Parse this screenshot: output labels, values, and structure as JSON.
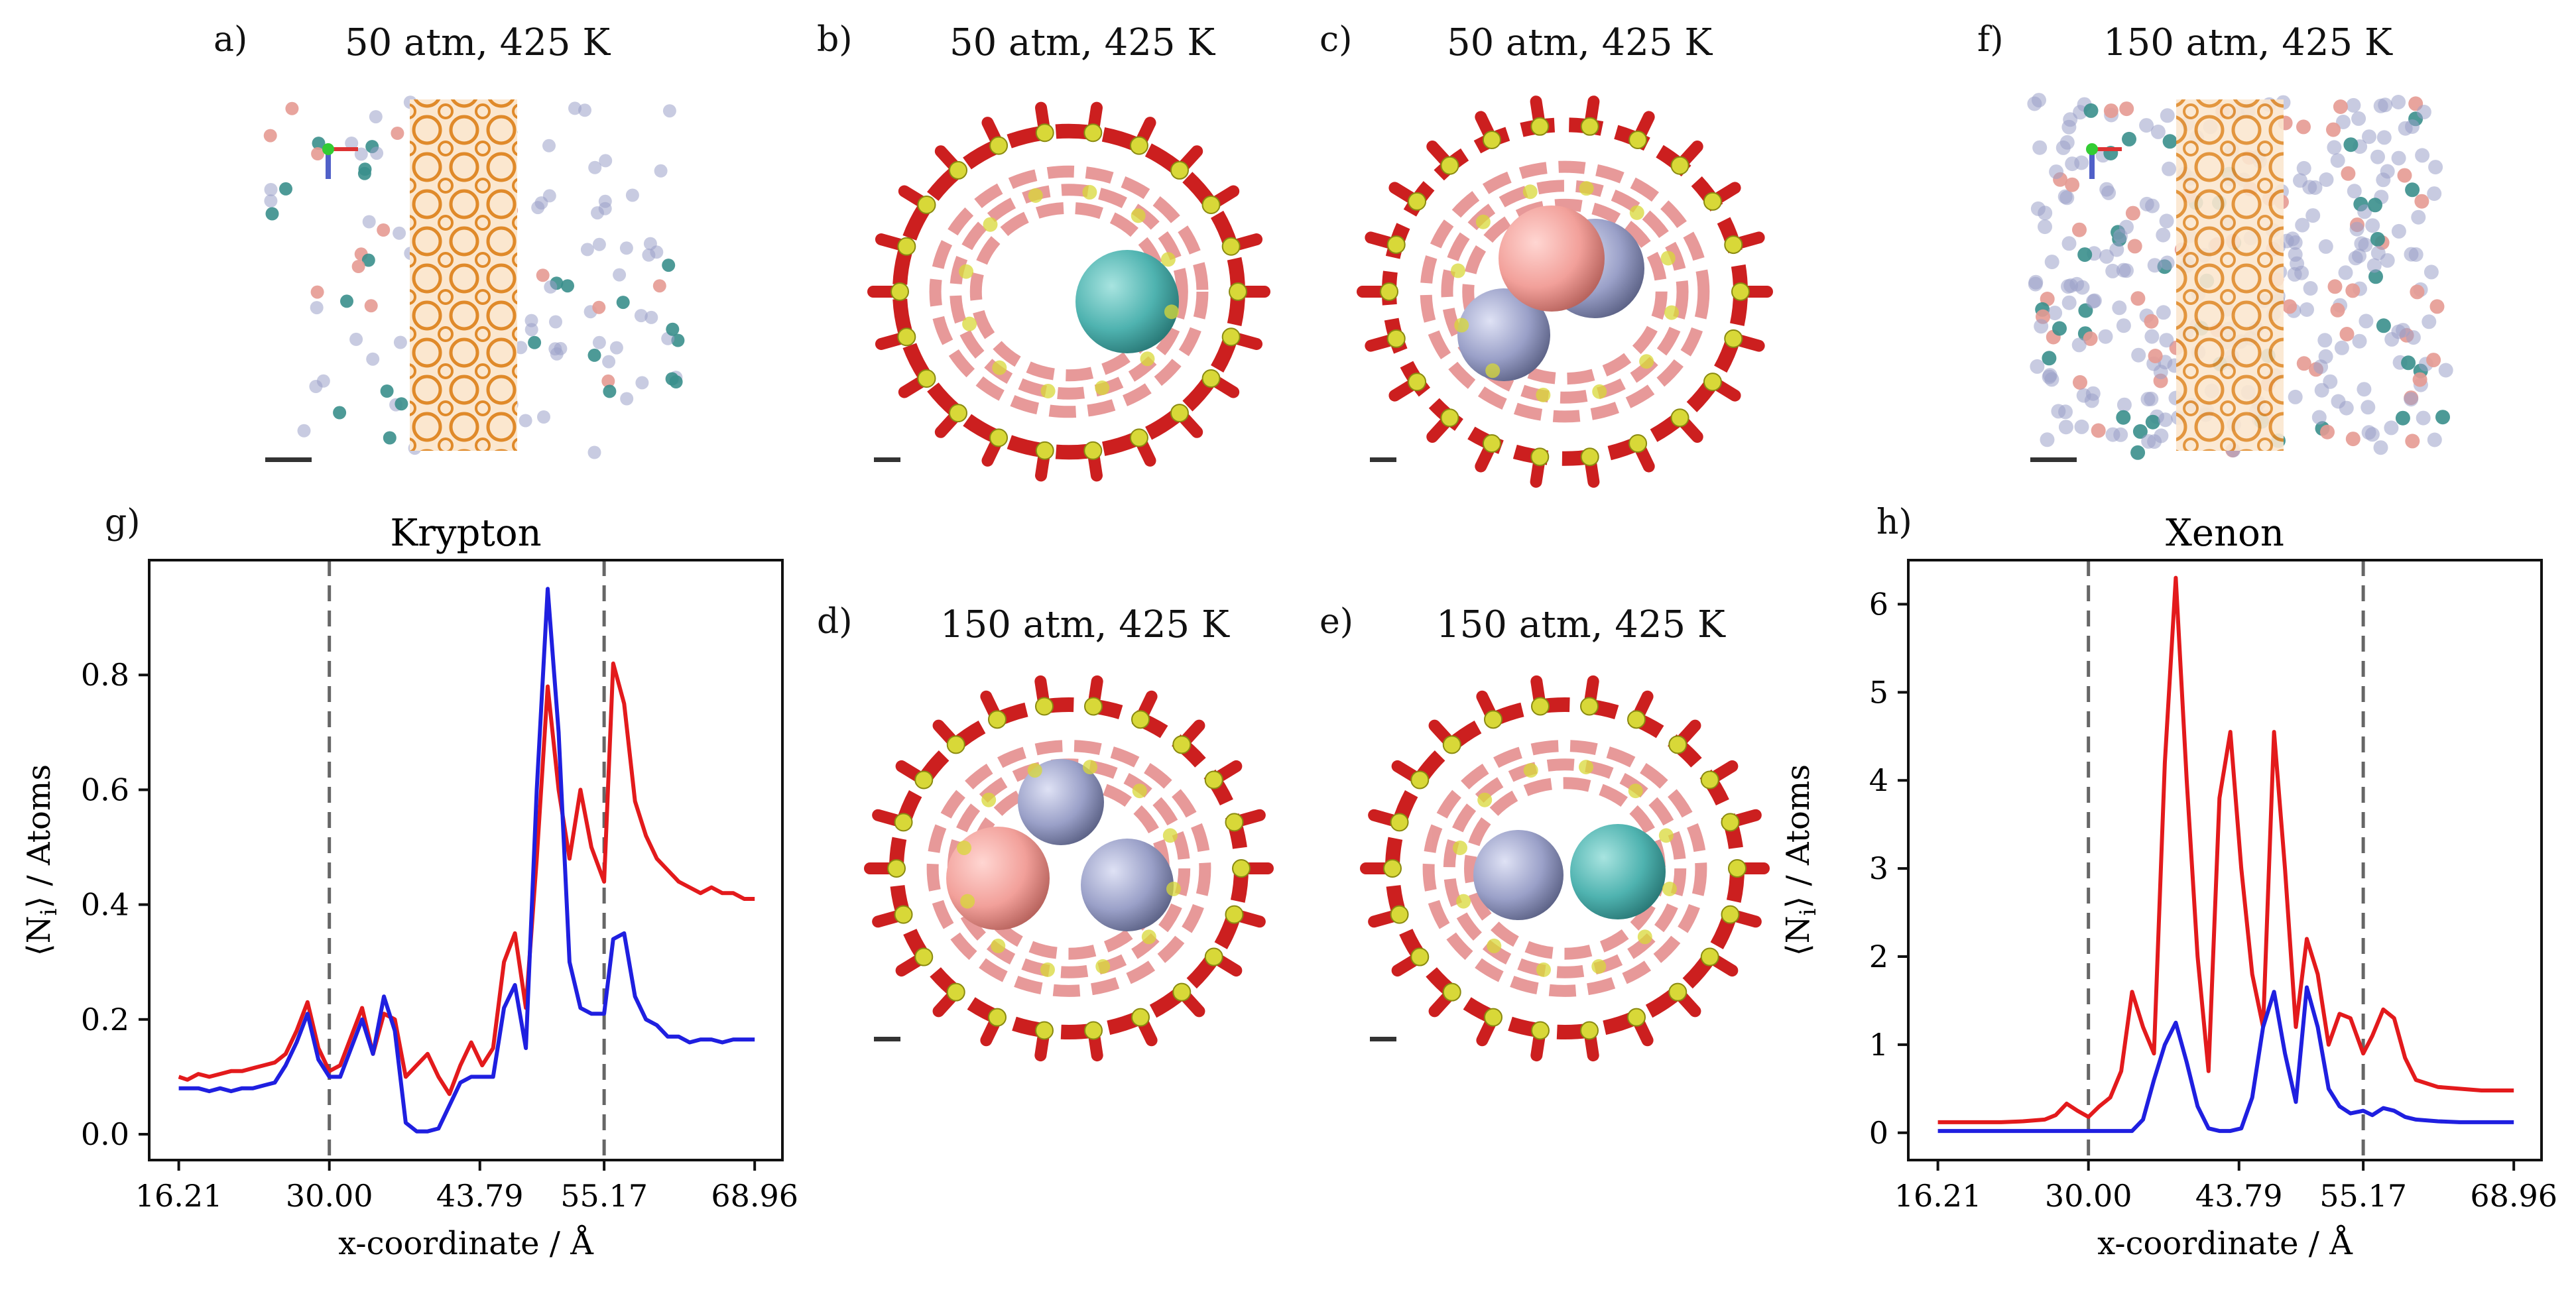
{
  "panels": {
    "a": {
      "label": "a)",
      "title": "50 atm, 425 K"
    },
    "b": {
      "label": "b)",
      "title": "50 atm, 425 K"
    },
    "c": {
      "label": "c)",
      "title": "50 atm, 425 K"
    },
    "d": {
      "label": "d)",
      "title": "150 atm, 425 K"
    },
    "e": {
      "label": "e)",
      "title": "150 atm, 425 K"
    },
    "f": {
      "label": "f)",
      "title": "150 atm, 425 K"
    },
    "g": {
      "label": "g)"
    },
    "h": {
      "label": "h)"
    }
  },
  "colors": {
    "red_series": "#e31a1c",
    "blue_series": "#1f1fe0",
    "framework_o": "#cc1f1f",
    "framework_si": "#d8d838",
    "krypton_atom": "#4fb3b0",
    "xenon_atom": "#f2a09a",
    "gas_atom": "#9aa0c8",
    "cage_orange": "#e08a2a"
  },
  "chart_data": [
    {
      "type": "line",
      "title": "Krypton",
      "xlabel": "x-coordinate / Å",
      "ylabel": "⟨N",
      "ylabel_sub": "i",
      "ylabel_tail": "⟩ / Atoms",
      "xlim": [
        13.5,
        71.5
      ],
      "ylim": [
        -0.045,
        1.0
      ],
      "xticks": [
        16.21,
        30.0,
        43.79,
        55.17,
        68.96
      ],
      "xtick_labels": [
        "16.21",
        "30.00",
        "43.79",
        "55.17",
        "68.96"
      ],
      "yticks": [
        0.0,
        0.2,
        0.4,
        0.6,
        0.8
      ],
      "ytick_labels": [
        "0.0",
        "0.2",
        "0.4",
        "0.6",
        "0.8"
      ],
      "vlines": [
        30.0,
        55.17
      ],
      "series": [
        {
          "name": "red",
          "color": "#e31a1c",
          "x": [
            16.21,
            17.0,
            18.0,
            19.0,
            20.0,
            21.0,
            22.0,
            23.0,
            24.0,
            25.0,
            26.0,
            27.0,
            28.0,
            29.0,
            30.0,
            31.0,
            32.0,
            33.0,
            34.0,
            35.0,
            36.0,
            37.0,
            38.0,
            39.0,
            40.0,
            41.0,
            42.0,
            43.0,
            44.0,
            45.0,
            46.0,
            47.0,
            48.0,
            49.0,
            50.0,
            51.0,
            52.0,
            53.0,
            54.0,
            55.17,
            56.0,
            57.0,
            58.0,
            59.0,
            60.0,
            61.0,
            62.0,
            63.0,
            64.0,
            65.0,
            66.0,
            67.0,
            68.0,
            68.96
          ],
          "y": [
            0.1,
            0.095,
            0.105,
            0.1,
            0.105,
            0.11,
            0.11,
            0.115,
            0.12,
            0.125,
            0.14,
            0.18,
            0.23,
            0.15,
            0.11,
            0.12,
            0.17,
            0.22,
            0.14,
            0.21,
            0.2,
            0.1,
            0.12,
            0.14,
            0.1,
            0.07,
            0.12,
            0.16,
            0.12,
            0.15,
            0.3,
            0.35,
            0.22,
            0.48,
            0.78,
            0.6,
            0.48,
            0.6,
            0.5,
            0.44,
            0.82,
            0.75,
            0.58,
            0.52,
            0.48,
            0.46,
            0.44,
            0.43,
            0.42,
            0.43,
            0.42,
            0.42,
            0.41,
            0.41
          ]
        },
        {
          "name": "blue",
          "color": "#1f1fe0",
          "x": [
            16.21,
            17.0,
            18.0,
            19.0,
            20.0,
            21.0,
            22.0,
            23.0,
            24.0,
            25.0,
            26.0,
            27.0,
            28.0,
            29.0,
            30.0,
            31.0,
            32.0,
            33.0,
            34.0,
            35.0,
            36.0,
            37.0,
            38.0,
            39.0,
            40.0,
            41.0,
            42.0,
            43.0,
            44.0,
            45.0,
            46.0,
            47.0,
            48.0,
            49.0,
            50.0,
            51.0,
            52.0,
            53.0,
            54.0,
            55.17,
            56.0,
            57.0,
            58.0,
            59.0,
            60.0,
            61.0,
            62.0,
            63.0,
            64.0,
            65.0,
            66.0,
            67.0,
            68.0,
            68.96
          ],
          "y": [
            0.08,
            0.08,
            0.08,
            0.075,
            0.08,
            0.075,
            0.08,
            0.08,
            0.085,
            0.09,
            0.12,
            0.16,
            0.21,
            0.13,
            0.1,
            0.1,
            0.15,
            0.2,
            0.14,
            0.24,
            0.18,
            0.02,
            0.005,
            0.005,
            0.01,
            0.05,
            0.09,
            0.1,
            0.1,
            0.1,
            0.22,
            0.26,
            0.15,
            0.6,
            0.95,
            0.7,
            0.3,
            0.22,
            0.21,
            0.21,
            0.34,
            0.35,
            0.24,
            0.2,
            0.19,
            0.17,
            0.17,
            0.16,
            0.165,
            0.165,
            0.16,
            0.165,
            0.165,
            0.165
          ]
        }
      ]
    },
    {
      "type": "line",
      "title": "Xenon",
      "xlabel": "x-coordinate / Å",
      "ylabel": "⟨N",
      "ylabel_sub": "i",
      "ylabel_tail": "⟩ / Atoms",
      "xlim": [
        13.5,
        71.5
      ],
      "ylim": [
        -0.31,
        6.5
      ],
      "xticks": [
        16.21,
        30.0,
        43.79,
        55.17,
        68.96
      ],
      "xtick_labels": [
        "16.21",
        "30.00",
        "43.79",
        "55.17",
        "68.96"
      ],
      "yticks": [
        0,
        1,
        2,
        3,
        4,
        5,
        6
      ],
      "ytick_labels": [
        "0",
        "1",
        "2",
        "3",
        "4",
        "5",
        "6"
      ],
      "vlines": [
        30.0,
        55.17
      ],
      "series": [
        {
          "name": "red",
          "color": "#e31a1c",
          "x": [
            16.21,
            18.0,
            20.0,
            22.0,
            24.0,
            26.0,
            27.0,
            28.0,
            29.0,
            30.0,
            31.0,
            32.0,
            33.0,
            34.0,
            35.0,
            36.0,
            37.0,
            38.0,
            39.0,
            40.0,
            41.0,
            42.0,
            43.0,
            44.0,
            45.0,
            46.0,
            47.0,
            48.0,
            49.0,
            50.0,
            51.0,
            52.0,
            53.0,
            54.0,
            55.17,
            56.0,
            57.0,
            58.0,
            59.0,
            60.0,
            62.0,
            64.0,
            66.0,
            68.96
          ],
          "y": [
            0.12,
            0.12,
            0.12,
            0.12,
            0.13,
            0.15,
            0.2,
            0.33,
            0.25,
            0.18,
            0.3,
            0.4,
            0.7,
            1.6,
            1.2,
            0.9,
            4.2,
            6.3,
            4.0,
            2.0,
            0.7,
            3.8,
            4.55,
            3.0,
            1.8,
            1.2,
            4.55,
            3.0,
            1.2,
            2.2,
            1.8,
            1.0,
            1.35,
            1.3,
            0.9,
            1.1,
            1.4,
            1.3,
            0.85,
            0.6,
            0.52,
            0.5,
            0.48,
            0.48
          ]
        },
        {
          "name": "blue",
          "color": "#1f1fe0",
          "x": [
            16.21,
            18.0,
            20.0,
            22.0,
            24.0,
            26.0,
            28.0,
            30.0,
            32.0,
            34.0,
            35.0,
            36.0,
            37.0,
            38.0,
            39.0,
            40.0,
            41.0,
            42.0,
            43.0,
            44.0,
            45.0,
            46.0,
            47.0,
            48.0,
            49.0,
            50.0,
            51.0,
            52.0,
            53.0,
            54.0,
            55.17,
            56.0,
            57.0,
            58.0,
            59.0,
            60.0,
            62.0,
            64.0,
            66.0,
            68.96
          ],
          "y": [
            0.02,
            0.02,
            0.02,
            0.02,
            0.02,
            0.02,
            0.02,
            0.02,
            0.02,
            0.02,
            0.15,
            0.6,
            1.0,
            1.25,
            0.8,
            0.3,
            0.05,
            0.02,
            0.02,
            0.05,
            0.4,
            1.2,
            1.6,
            0.9,
            0.35,
            1.65,
            1.2,
            0.5,
            0.3,
            0.22,
            0.25,
            0.2,
            0.28,
            0.25,
            0.18,
            0.15,
            0.13,
            0.12,
            0.12,
            0.12
          ]
        }
      ]
    }
  ]
}
